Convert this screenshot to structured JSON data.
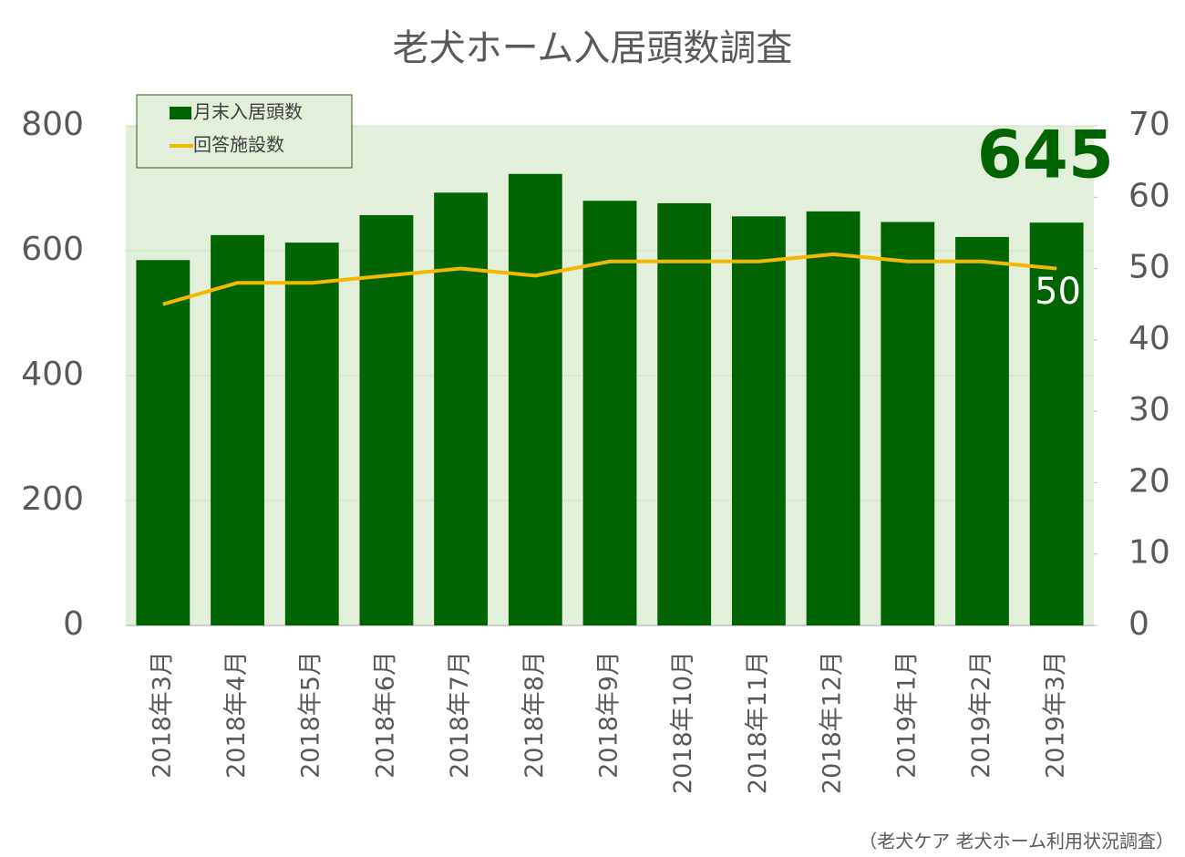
{
  "chart_data": {
    "type": "bar_line",
    "title": "老犬ホーム入居頭数調査",
    "source": "（老犬ケア 老犬ホーム利用状況調査）",
    "categories": [
      "2018年3月",
      "2018年4月",
      "2018年5月",
      "2018年6月",
      "2018年7月",
      "2018年8月",
      "2018年9月",
      "2018年10月",
      "2018年11月",
      "2018年12月",
      "2019年1月",
      "2019年2月",
      "2019年3月"
    ],
    "series": [
      {
        "name": "月末入居頭数",
        "type": "bar",
        "color": "#006400",
        "values": [
          585,
          625,
          613,
          657,
          693,
          723,
          680,
          676,
          655,
          663,
          646,
          622,
          645
        ]
      },
      {
        "name": "回答施設数",
        "type": "line",
        "axis": "y2",
        "color": "#f5b800",
        "values": [
          45,
          48,
          48,
          49,
          50,
          49,
          51,
          51,
          51,
          52,
          51,
          51,
          50
        ]
      }
    ],
    "ylim": [
      0,
      800
    ],
    "yticks": [
      0,
      200,
      400,
      600,
      800
    ],
    "y2lim": [
      0,
      70
    ],
    "y2ticks": [
      0,
      10,
      20,
      30,
      40,
      50,
      60,
      70
    ],
    "grid": true,
    "legend": "upper left",
    "last_value_labels": true
  }
}
